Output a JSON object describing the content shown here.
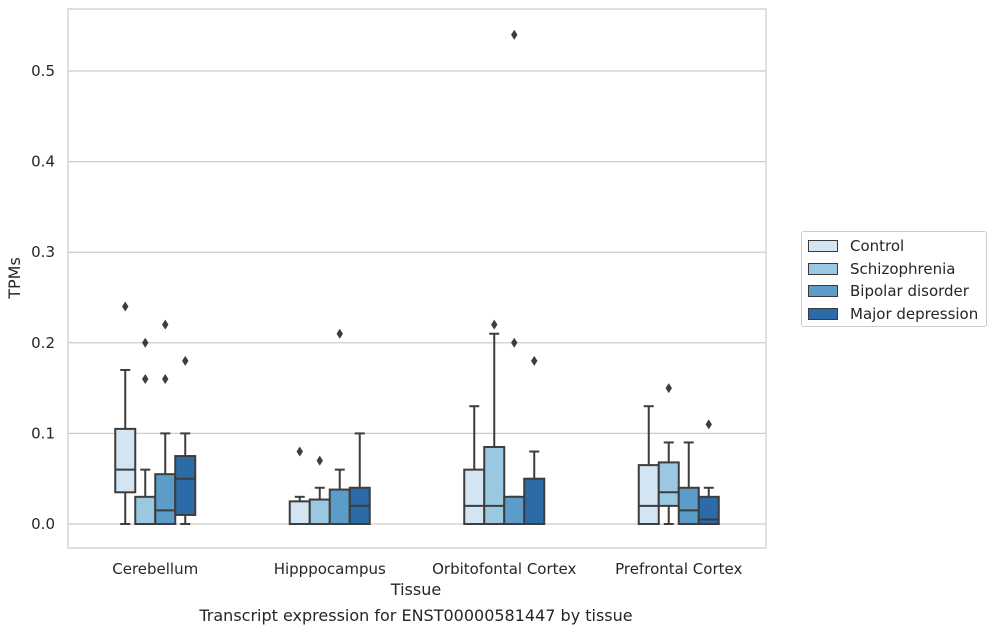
{
  "chart_data": {
    "type": "box",
    "xlabel": "Tissue",
    "ylabel": "TPMs",
    "ylim": [
      -0.026,
      0.567
    ],
    "yticks": [
      0.0,
      0.1,
      0.2,
      0.3,
      0.4,
      0.5
    ],
    "ytick_labels": [
      "0.0",
      "0.1",
      "0.2",
      "0.3",
      "0.4",
      "0.5"
    ],
    "grid": "horizontal",
    "legend_position": "right",
    "categories": [
      "Cerebellum",
      "Hipppocampus",
      "Orbitofontal Cortex",
      "Prefrontal Cortex"
    ],
    "series": [
      {
        "name": "Control",
        "color": "#d3e4f3",
        "boxes": [
          {
            "whislo": 0.0,
            "q1": 0.035,
            "med": 0.06,
            "q3": 0.105,
            "whishi": 0.17,
            "fliers": [
              0.24
            ]
          },
          {
            "whislo": 0.0,
            "q1": 0.0,
            "med": 0.0,
            "q3": 0.025,
            "whishi": 0.03,
            "fliers": [
              0.08
            ]
          },
          {
            "whislo": 0.0,
            "q1": 0.0,
            "med": 0.02,
            "q3": 0.06,
            "whishi": 0.13,
            "fliers": []
          },
          {
            "whislo": 0.0,
            "q1": 0.0,
            "med": 0.02,
            "q3": 0.065,
            "whishi": 0.13,
            "fliers": []
          }
        ]
      },
      {
        "name": "Schizophrenia",
        "color": "#9ac8e0",
        "boxes": [
          {
            "whislo": 0.0,
            "q1": 0.0,
            "med": 0.0,
            "q3": 0.03,
            "whishi": 0.06,
            "fliers": [
              0.16,
              0.2
            ]
          },
          {
            "whislo": 0.0,
            "q1": 0.0,
            "med": 0.0,
            "q3": 0.027,
            "whishi": 0.04,
            "fliers": [
              0.07
            ]
          },
          {
            "whislo": 0.0,
            "q1": 0.0,
            "med": 0.02,
            "q3": 0.085,
            "whishi": 0.21,
            "fliers": [
              0.22
            ]
          },
          {
            "whislo": 0.0,
            "q1": 0.02,
            "med": 0.035,
            "q3": 0.068,
            "whishi": 0.09,
            "fliers": [
              0.15
            ]
          }
        ]
      },
      {
        "name": "Bipolar disorder",
        "color": "#5b9cc9",
        "boxes": [
          {
            "whislo": 0.0,
            "q1": 0.0,
            "med": 0.015,
            "q3": 0.055,
            "whishi": 0.1,
            "fliers": [
              0.16,
              0.22
            ]
          },
          {
            "whislo": 0.0,
            "q1": 0.0,
            "med": 0.0,
            "q3": 0.038,
            "whishi": 0.06,
            "fliers": [
              0.21
            ]
          },
          {
            "whislo": 0.0,
            "q1": 0.0,
            "med": 0.0,
            "q3": 0.03,
            "whishi": 0.03,
            "fliers": [
              0.2,
              0.54
            ]
          },
          {
            "whislo": 0.0,
            "q1": 0.0,
            "med": 0.015,
            "q3": 0.04,
            "whishi": 0.09,
            "fliers": []
          }
        ]
      },
      {
        "name": "Major depression",
        "color": "#2b6ba8",
        "boxes": [
          {
            "whislo": 0.0,
            "q1": 0.01,
            "med": 0.05,
            "q3": 0.075,
            "whishi": 0.1,
            "fliers": [
              0.18
            ]
          },
          {
            "whislo": 0.0,
            "q1": 0.0,
            "med": 0.02,
            "q3": 0.04,
            "whishi": 0.1,
            "fliers": []
          },
          {
            "whislo": 0.0,
            "q1": 0.0,
            "med": 0.0,
            "q3": 0.05,
            "whishi": 0.08,
            "fliers": [
              0.18
            ]
          },
          {
            "whislo": 0.0,
            "q1": 0.0,
            "med": 0.005,
            "q3": 0.03,
            "whishi": 0.04,
            "fliers": [
              0.11
            ]
          }
        ]
      }
    ],
    "caption": "Transcript expression for ENST00000581447 by tissue"
  }
}
